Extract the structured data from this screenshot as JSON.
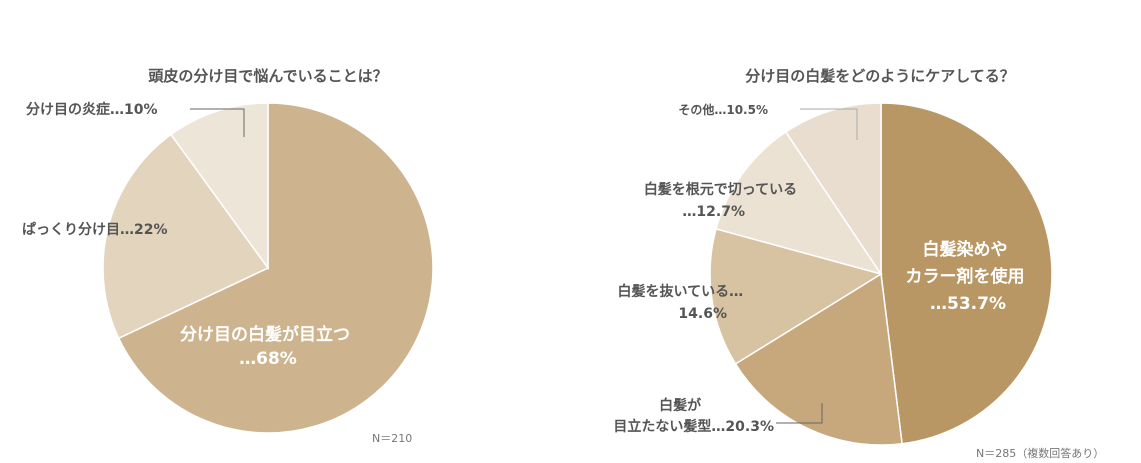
{
  "chart_data": [
    {
      "type": "pie",
      "title": "頭皮の分け目で悩んでいることは？",
      "note": "N＝210",
      "slices": [
        {
          "label": [
            "分け目の白髪が目立つ",
            "…68%"
          ],
          "value": 68,
          "color": "#cdb48e"
        },
        {
          "label": [
            "ぱっくり分け目…22%"
          ],
          "value": 22,
          "color": "#e3d4bd"
        },
        {
          "label": [
            "分け目の炎症…10%"
          ],
          "value": 10,
          "color": "#eee5d9"
        }
      ]
    },
    {
      "type": "pie",
      "title": "分け目の白髪をどのようにケアしてる？",
      "note": "N＝285（複数回答あり）",
      "slices": [
        {
          "label": [
            "白髪染めや",
            "カラー剤を使用",
            "…53.7%"
          ],
          "value": 53.7,
          "color": "#b99764"
        },
        {
          "label": [
            "白髪が",
            "目立たない髪型…20.3%"
          ],
          "value": 20.3,
          "color": "#c6a87c"
        },
        {
          "label": [
            "白髪を抜いている…",
            "14.6%"
          ],
          "value": 14.6,
          "color": "#d7c2a1"
        },
        {
          "label": [
            "白髪を根元で切っている",
            "…12.7%"
          ],
          "value": 12.7,
          "color": "#ece2d4"
        },
        {
          "label": [
            "その他…10.5%"
          ],
          "value": 10.5,
          "color": "#e8ddcf"
        }
      ]
    }
  ]
}
